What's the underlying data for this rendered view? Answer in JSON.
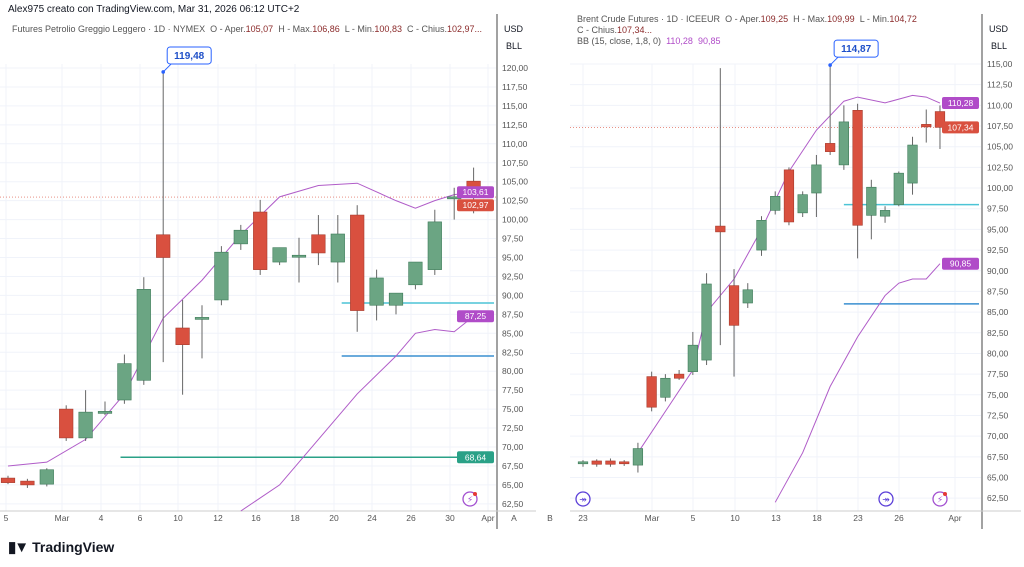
{
  "credit": "Alex975 creato con TradingView.com, Mar 31, 2026 06:12 UTC+2",
  "brand": "TradingView",
  "colors": {
    "up": "#6ba583",
    "down": "#d9503f",
    "bb": "#b05cc8",
    "grid": "#f0f3fa",
    "cyan": "#4cc4d6",
    "blue": "#3a8fd0",
    "green": "#2aa187",
    "callout": "#2962ff"
  },
  "charts": [
    {
      "legend": {
        "symbol": "Futures Petrolio Greggio Leggero · 1D · NYMEX",
        "o_label": "O - Aper.",
        "o": "105,07",
        "h_label": "H - Max.",
        "h": "106,86",
        "l_label": "L - Min.",
        "l": "100,83",
        "c_label": "C - Chius.",
        "c": "102,97..."
      },
      "currency": "USD",
      "unit": "BLL",
      "callout": "119,48",
      "pane_label": "A",
      "y_ticks": [
        "120,00",
        "117,50",
        "115,00",
        "112,50",
        "110,00",
        "107,50",
        "105,00",
        "102,50",
        "100,00",
        "97,50",
        "95,00",
        "92,50",
        "90,00",
        "87,50",
        "85,00",
        "82,50",
        "80,00",
        "77,50",
        "75,00",
        "72,50",
        "70,00",
        "67,50",
        "65,00",
        "62,50"
      ],
      "x_ticks": [
        "5",
        "Mar",
        "4",
        "6",
        "10",
        "12",
        "16",
        "18",
        "20",
        "24",
        "26",
        "30",
        "Apr"
      ],
      "badges": [
        {
          "text": "103,61",
          "price": 103.61,
          "color": "#b04cc8"
        },
        {
          "text": "102,97",
          "price": 102.97,
          "color": "#d9503f"
        },
        {
          "text": "87,25",
          "price": 87.25,
          "color": "#b04cc8"
        },
        {
          "text": "68,64",
          "price": 68.64,
          "color": "#2aa187"
        }
      ]
    },
    {
      "legend": {
        "symbol": "Brent Crude Futures · 1D · ICEEUR",
        "o_label": "O - Aper.",
        "o": "109,25",
        "h_label": "H - Max.",
        "h": "109,99",
        "l_label": "L - Min.",
        "l": "104,72",
        "c_label": "C - Chius.",
        "c": "107,34...",
        "bb_label": "BB (15, close, 1,8, 0)",
        "bb_upper": "110,28",
        "bb_lower": "90,85"
      },
      "currency": "USD",
      "unit": "BLL",
      "callout": "114,87",
      "pane_label": "B",
      "y_ticks": [
        "115,00",
        "112,50",
        "110,00",
        "107,50",
        "105,00",
        "102,50",
        "100,00",
        "97,50",
        "95,00",
        "92,50",
        "90,00",
        "87,50",
        "85,00",
        "82,50",
        "80,00",
        "77,50",
        "75,00",
        "72,50",
        "70,00",
        "67,50",
        "65,00",
        "62,50"
      ],
      "x_ticks": [
        "23",
        "Mar",
        "5",
        "10",
        "13",
        "18",
        "23",
        "26",
        "Apr"
      ],
      "badges": [
        {
          "text": "110,28",
          "price": 110.28,
          "color": "#b04cc8"
        },
        {
          "text": "107,34",
          "price": 107.34,
          "color": "#d9503f"
        },
        {
          "text": "90,85",
          "price": 90.85,
          "color": "#b04cc8"
        }
      ]
    }
  ],
  "chart_data": [
    {
      "type": "candlestick",
      "ylim": [
        62.5,
        120
      ],
      "ohlc": [
        [
          65.9,
          66.2,
          65.1,
          65.3
        ],
        [
          65.5,
          65.8,
          64.6,
          65.0
        ],
        [
          65.1,
          67.2,
          64.8,
          67.0
        ],
        [
          75.0,
          75.5,
          70.8,
          71.2
        ],
        [
          71.2,
          77.5,
          70.8,
          74.6
        ],
        [
          74.7,
          76.0,
          74.2,
          74.7
        ],
        [
          76.2,
          82.2,
          75.7,
          81.0
        ],
        [
          78.8,
          92.4,
          78.2,
          90.8
        ],
        [
          98.0,
          119.48,
          81.2,
          95.0
        ],
        [
          85.7,
          89.4,
          76.9,
          83.5
        ],
        [
          87.0,
          88.7,
          81.7,
          87.1
        ],
        [
          89.4,
          96.5,
          88.7,
          95.7
        ],
        [
          96.8,
          99.3,
          96.0,
          98.6
        ],
        [
          101.0,
          102.6,
          92.7,
          93.4
        ],
        [
          94.4,
          96.3,
          94.0,
          96.3
        ],
        [
          95.2,
          97.6,
          91.7,
          95.3
        ],
        [
          98.0,
          100.6,
          94.0,
          95.6
        ],
        [
          94.4,
          100.6,
          91.7,
          98.1
        ],
        [
          100.6,
          101.9,
          85.2,
          88.0
        ],
        [
          88.7,
          93.4,
          86.7,
          92.3
        ],
        [
          88.7,
          90.3,
          87.5,
          90.3
        ],
        [
          91.4,
          94.4,
          90.8,
          94.4
        ],
        [
          93.4,
          101.3,
          92.7,
          99.7
        ],
        [
          102.8,
          104.2,
          100.0,
          103.0
        ],
        [
          105.07,
          106.86,
          100.83,
          102.97
        ]
      ],
      "bb_upper": [
        [
          0,
          67.5
        ],
        [
          2,
          68
        ],
        [
          4,
          71
        ],
        [
          6,
          77
        ],
        [
          8,
          87
        ],
        [
          10,
          92
        ],
        [
          12,
          98
        ],
        [
          14,
          103
        ],
        [
          16,
          104.5
        ],
        [
          18,
          104.8
        ],
        [
          20,
          102.5
        ],
        [
          21,
          101.5
        ],
        [
          22,
          102.5
        ],
        [
          23,
          103.3
        ],
        [
          24,
          103.61
        ]
      ],
      "bb_lower": [
        [
          12,
          61
        ],
        [
          14,
          65
        ],
        [
          16,
          71
        ],
        [
          18,
          77
        ],
        [
          20,
          82
        ],
        [
          21,
          85
        ],
        [
          22,
          85.5
        ],
        [
          23,
          85.2
        ],
        [
          24,
          87.25
        ]
      ],
      "hlines": [
        {
          "price": 89.0,
          "from": 17.2,
          "color": "cyan"
        },
        {
          "price": 82.0,
          "from": 17.2,
          "color": "blue"
        },
        {
          "price": 68.64,
          "from": 5.8,
          "color": "green"
        }
      ]
    },
    {
      "type": "candlestick",
      "ylim": [
        62.5,
        115
      ],
      "ohlc": [
        [
          66.7,
          67.1,
          66.3,
          66.9
        ],
        [
          67.0,
          67.2,
          66.3,
          66.6
        ],
        [
          67.0,
          67.3,
          66.3,
          66.6
        ],
        [
          66.9,
          67.1,
          66.4,
          66.7
        ],
        [
          66.5,
          69.2,
          65.6,
          68.5
        ],
        [
          77.2,
          77.8,
          73.0,
          73.5
        ],
        [
          74.7,
          77.5,
          74.2,
          77.0
        ],
        [
          77.5,
          78.0,
          76.8,
          77.0
        ],
        [
          77.8,
          82.6,
          77.4,
          81.0
        ],
        [
          79.2,
          89.7,
          78.6,
          88.4
        ],
        [
          95.4,
          114.5,
          81.0,
          94.7
        ],
        [
          88.2,
          90.2,
          77.2,
          83.4
        ],
        [
          86.1,
          88.5,
          85.5,
          87.7
        ],
        [
          92.5,
          96.6,
          91.8,
          96.1
        ],
        [
          97.3,
          99.6,
          96.8,
          99.0
        ],
        [
          102.2,
          102.5,
          95.5,
          95.9
        ],
        [
          97.0,
          99.6,
          96.5,
          99.2
        ],
        [
          99.4,
          104.0,
          96.5,
          102.8
        ],
        [
          105.4,
          114.87,
          104.0,
          104.4
        ],
        [
          102.8,
          110.0,
          102.2,
          108.0
        ],
        [
          109.4,
          110.2,
          91.5,
          95.5
        ],
        [
          96.7,
          101.0,
          93.8,
          100.1
        ],
        [
          96.6,
          97.8,
          95.8,
          97.3
        ],
        [
          98.0,
          102.0,
          97.8,
          101.8
        ],
        [
          100.6,
          106.2,
          99.2,
          105.2
        ],
        [
          107.7,
          109.5,
          105.5,
          107.4
        ],
        [
          109.25,
          109.99,
          104.72,
          107.34
        ]
      ],
      "bb_upper": [
        [
          4,
          68
        ],
        [
          6,
          73
        ],
        [
          8,
          78
        ],
        [
          9,
          85
        ],
        [
          11,
          89
        ],
        [
          13,
          95
        ],
        [
          15,
          102
        ],
        [
          17,
          107
        ],
        [
          19,
          110.5
        ],
        [
          20,
          111
        ],
        [
          22,
          110.3
        ],
        [
          24,
          111.2
        ],
        [
          25,
          111
        ],
        [
          26,
          110.28
        ]
      ],
      "bb_lower": [
        [
          14,
          62
        ],
        [
          16,
          68
        ],
        [
          18,
          76
        ],
        [
          20,
          82
        ],
        [
          22,
          87
        ],
        [
          23,
          88.5
        ],
        [
          24,
          89
        ],
        [
          25,
          89
        ],
        [
          26,
          90.85
        ]
      ],
      "hlines": [
        {
          "price": 98.0,
          "from": 19,
          "color": "cyan"
        },
        {
          "price": 86.0,
          "from": 19,
          "color": "blue"
        }
      ]
    }
  ]
}
